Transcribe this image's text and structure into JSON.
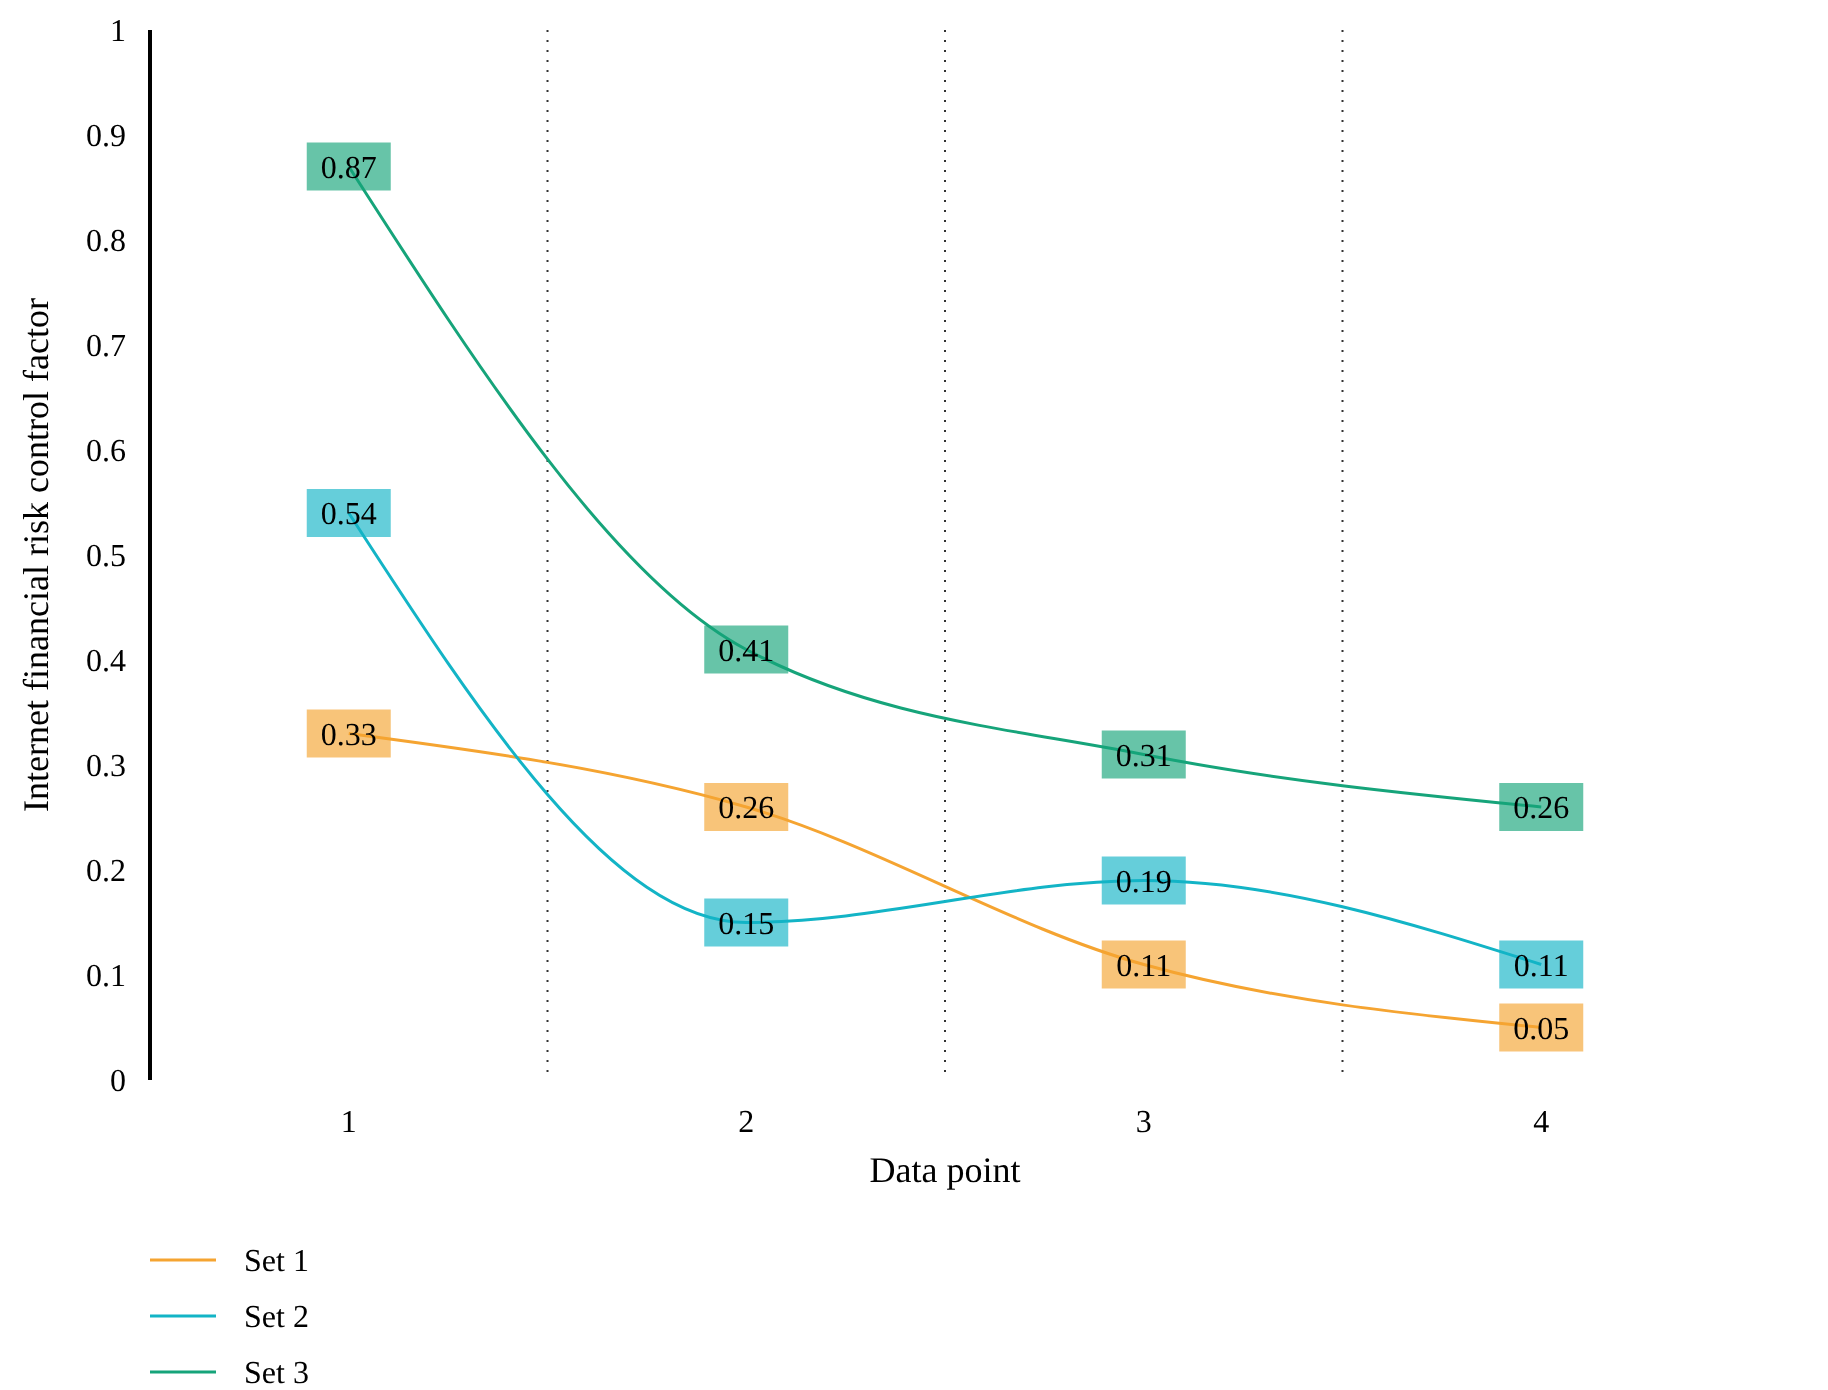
{
  "chart_data": {
    "type": "line",
    "xlabel": "Data point",
    "ylabel": "Internet financial risk control factor",
    "categories": [
      "1",
      "2",
      "3",
      "4"
    ],
    "series": [
      {
        "name": "Set 1",
        "color": "#f5a431",
        "values": [
          0.33,
          0.26,
          0.11,
          0.05
        ]
      },
      {
        "name": "Set 2",
        "color": "#13b4c6",
        "values": [
          0.54,
          0.15,
          0.19,
          0.11
        ]
      },
      {
        "name": "Set 3",
        "color": "#16a47a",
        "values": [
          0.87,
          0.41,
          0.31,
          0.26
        ]
      }
    ],
    "ylim": [
      0,
      1
    ],
    "yticks": [
      0,
      0.1,
      0.2,
      0.3,
      0.4,
      0.5,
      0.6,
      0.7,
      0.8,
      0.9,
      1
    ],
    "grid": "x",
    "legend": "bottom left",
    "data_labels": true,
    "marker": "square",
    "line_style": "solid"
  }
}
